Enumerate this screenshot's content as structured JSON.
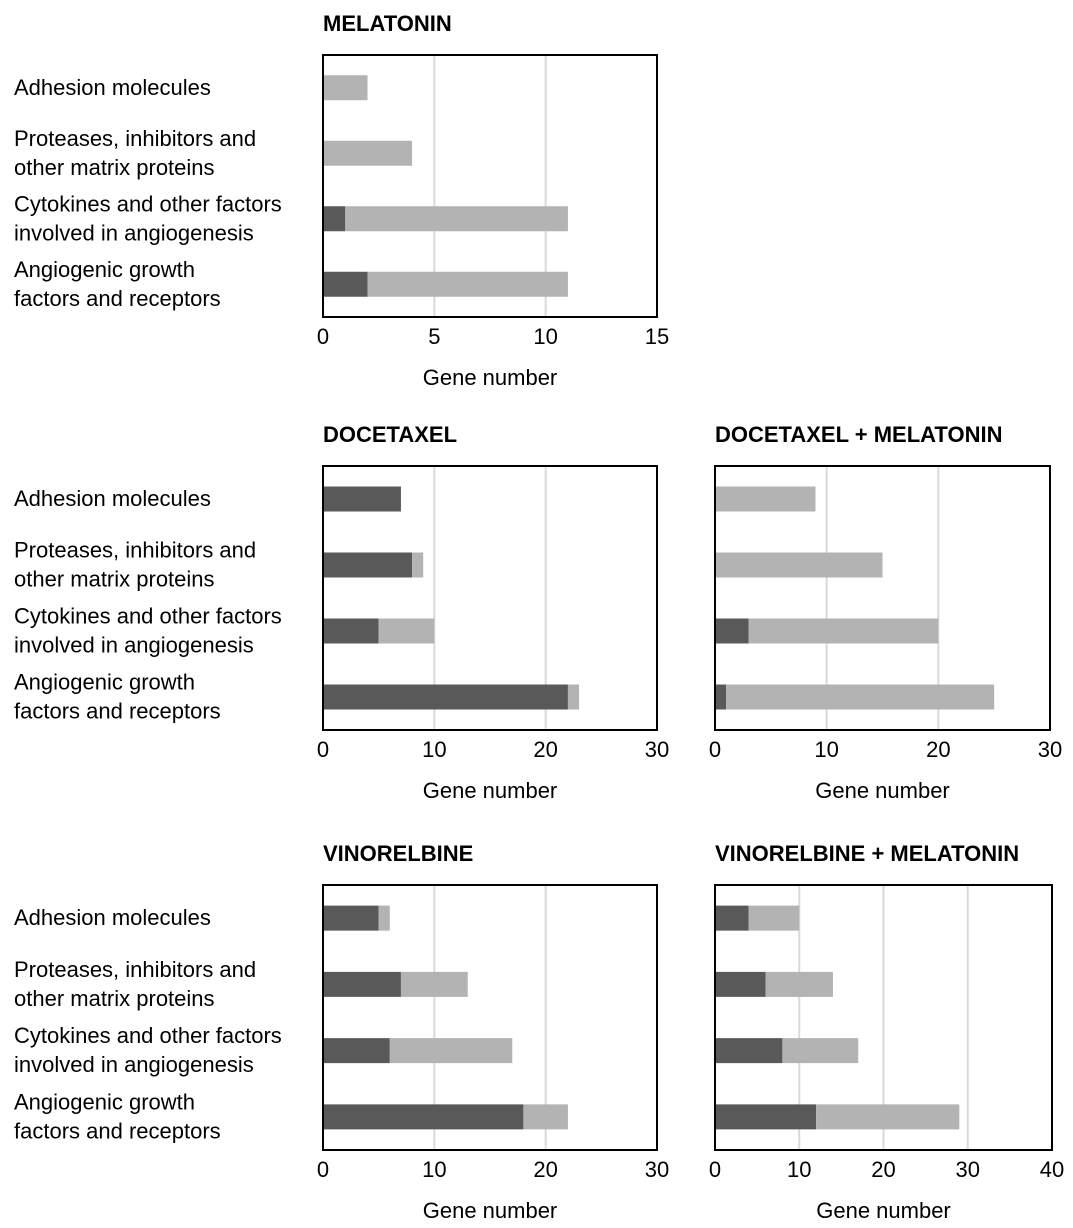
{
  "colors": {
    "down": "#595959",
    "up": "#b3b3b3",
    "grid": "#d9d9d9",
    "frame": "#000000"
  },
  "chart_data": [
    {
      "type": "bar",
      "orientation": "horizontal",
      "stacked": true,
      "title": "MELATONIN",
      "xlabel": "Gene number",
      "categories": [
        "Adhesion molecules",
        "Proteases, inhibitors and other matrix proteins",
        "Cytokines and other factors involved in angiogenesis",
        "Angiogenic growth factors and receptors"
      ],
      "category_lines": [
        [
          "Adhesion molecules"
        ],
        [
          "Proteases, inhibitors and",
          "other matrix proteins"
        ],
        [
          "Cytokines and other factors",
          "involved in angiogenesis"
        ],
        [
          "Angiogenic growth",
          "factors and receptors"
        ]
      ],
      "series": [
        {
          "color": "#595959",
          "values": [
            0,
            0,
            1,
            2
          ]
        },
        {
          "color": "#b3b3b3",
          "values": [
            2,
            4,
            10,
            9
          ]
        }
      ],
      "xlim": [
        0,
        15
      ],
      "xticks": [
        0,
        5,
        10,
        15
      ],
      "grid": true,
      "legend": "none"
    },
    {
      "type": "bar",
      "orientation": "horizontal",
      "stacked": true,
      "title": "DOCETAXEL",
      "xlabel": "Gene number",
      "categories": [
        "Adhesion molecules",
        "Proteases, inhibitors and other matrix proteins",
        "Cytokines and other factors involved in angiogenesis",
        "Angiogenic growth factors and receptors"
      ],
      "category_lines": [
        [
          "Adhesion molecules"
        ],
        [
          "Proteases, inhibitors and",
          "other matrix proteins"
        ],
        [
          "Cytokines and other factors",
          "involved in angiogenesis"
        ],
        [
          "Angiogenic growth",
          "factors and receptors"
        ]
      ],
      "series": [
        {
          "color": "#595959",
          "values": [
            7,
            8,
            5,
            22
          ]
        },
        {
          "color": "#b3b3b3",
          "values": [
            0,
            1,
            5,
            1
          ]
        }
      ],
      "xlim": [
        0,
        30
      ],
      "xticks": [
        0,
        10,
        20,
        30
      ],
      "grid": true,
      "legend": "none"
    },
    {
      "type": "bar",
      "orientation": "horizontal",
      "stacked": true,
      "title": "DOCETAXEL + MELATONIN",
      "xlabel": "Gene number",
      "categories": [
        "Adhesion molecules",
        "Proteases, inhibitors and other matrix proteins",
        "Cytokines and other factors involved in angiogenesis",
        "Angiogenic growth factors and receptors"
      ],
      "category_lines": [],
      "series": [
        {
          "color": "#595959",
          "values": [
            0,
            0,
            3,
            1
          ]
        },
        {
          "color": "#b3b3b3",
          "values": [
            9,
            15,
            17,
            24
          ]
        }
      ],
      "xlim": [
        0,
        30
      ],
      "xticks": [
        0,
        10,
        20,
        30
      ],
      "grid": true,
      "legend": "none"
    },
    {
      "type": "bar",
      "orientation": "horizontal",
      "stacked": true,
      "title": "VINORELBINE",
      "xlabel": "Gene number",
      "categories": [
        "Adhesion molecules",
        "Proteases, inhibitors and other matrix proteins",
        "Cytokines and other factors involved in angiogenesis",
        "Angiogenic growth factors and receptors"
      ],
      "category_lines": [
        [
          "Adhesion molecules"
        ],
        [
          "Proteases, inhibitors and",
          "other matrix proteins"
        ],
        [
          "Cytokines and other factors",
          "involved in angiogenesis"
        ],
        [
          "Angiogenic growth",
          "factors and receptors"
        ]
      ],
      "series": [
        {
          "color": "#595959",
          "values": [
            5,
            7,
            6,
            18
          ]
        },
        {
          "color": "#b3b3b3",
          "values": [
            1,
            6,
            11,
            4
          ]
        }
      ],
      "xlim": [
        0,
        30
      ],
      "xticks": [
        0,
        10,
        20,
        30
      ],
      "grid": true,
      "legend": "none"
    },
    {
      "type": "bar",
      "orientation": "horizontal",
      "stacked": true,
      "title": "VINORELBINE + MELATONIN",
      "xlabel": "Gene number",
      "categories": [
        "Adhesion molecules",
        "Proteases, inhibitors and other matrix proteins",
        "Cytokines and other factors involved in angiogenesis",
        "Angiogenic growth factors and receptors"
      ],
      "category_lines": [],
      "series": [
        {
          "color": "#595959",
          "values": [
            4,
            6,
            8,
            12
          ]
        },
        {
          "color": "#b3b3b3",
          "values": [
            6,
            8,
            9,
            17
          ]
        }
      ],
      "xlim": [
        0,
        40
      ],
      "xticks": [
        0,
        10,
        20,
        30,
        40
      ],
      "grid": true,
      "legend": "none"
    }
  ]
}
